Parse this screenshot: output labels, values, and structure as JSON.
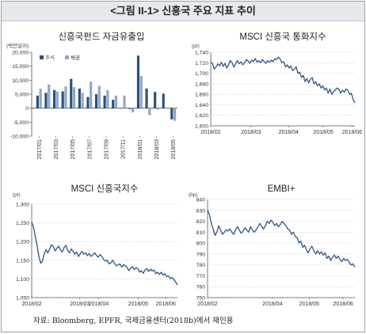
{
  "figure_title": "<그림 II-1> 신흥국 주요 지표 추이",
  "source_note": "자료: Bloomberg, EPFR, 국제금융센터(2018b)에서 재인용",
  "colors": {
    "stock": "#2b4f7e",
    "bond": "#8fa8c6",
    "line": "#2e5585",
    "grid": "#bfbfbf",
    "axis": "#555555"
  },
  "chart_data": [
    {
      "type": "bar",
      "title": "신흥국펀드 자금유출입",
      "ylabel": "(백만달러)",
      "ylim": [
        -10000,
        20000
      ],
      "yticks": [
        -10000,
        -5000,
        0,
        5000,
        10000,
        15000,
        20000
      ],
      "ytick_labels": [
        "-10,000",
        "-5,000",
        "0",
        "5,000",
        "10,000",
        "15,000",
        "20,000"
      ],
      "categories": [
        "2017/01",
        "2017/02",
        "2017/03",
        "2017/04",
        "2017/05",
        "2017/06",
        "2017/07",
        "2017/08",
        "2017/09",
        "2017/10",
        "2017/11",
        "2017/12",
        "2018/01",
        "2018/02",
        "2018/03",
        "2018/04",
        "2018/05"
      ],
      "xtick_labels": [
        "2017/01",
        "2017/03",
        "2017/05",
        "2017/07",
        "2017/09",
        "2017/11",
        "2018/01",
        "2018/03",
        "2018/05"
      ],
      "legend": "top-left",
      "series": [
        {
          "name": "주식",
          "values": [
            4500,
            5500,
            6500,
            6000,
            10500,
            7000,
            4000,
            5000,
            4500,
            3000,
            0,
            -300,
            18800,
            7000,
            5800,
            5200,
            -4000
          ]
        },
        {
          "name": "채권",
          "values": [
            7000,
            8500,
            6000,
            7800,
            7500,
            5500,
            9500,
            8000,
            6500,
            4500,
            4500,
            -1500,
            11500,
            -2500,
            -500,
            -200,
            -4500
          ]
        }
      ]
    },
    {
      "type": "line",
      "title": "MSCI 신흥국 통화지수",
      "ylabel": "(pt)",
      "ylim": [
        1600,
        1740
      ],
      "yticks": [
        1600,
        1620,
        1640,
        1660,
        1680,
        1700,
        1720,
        1740
      ],
      "ytick_labels": [
        "1,600",
        "1,620",
        "1,640",
        "1,660",
        "1,680",
        "1,700",
        "1,720",
        "1,740"
      ],
      "xtick_labels": [
        "2018/02",
        "2018/03",
        "2018/04",
        "2018/05",
        "2018/06"
      ],
      "values": [
        1722,
        1718,
        1708,
        1712,
        1718,
        1714,
        1721,
        1713,
        1719,
        1710,
        1716,
        1724,
        1720,
        1712,
        1718,
        1724,
        1718,
        1722,
        1716,
        1720,
        1726,
        1723,
        1719,
        1725,
        1722,
        1728,
        1721,
        1724,
        1720,
        1726,
        1722,
        1719,
        1724,
        1721,
        1725,
        1722,
        1728,
        1726,
        1731,
        1727,
        1720,
        1722,
        1712,
        1716,
        1710,
        1714,
        1705,
        1708,
        1712,
        1700,
        1702,
        1692,
        1696,
        1684,
        1690,
        1682,
        1688,
        1692,
        1680,
        1684,
        1676,
        1680,
        1672,
        1676,
        1668,
        1672,
        1662,
        1670,
        1660,
        1665,
        1668,
        1672,
        1670,
        1662,
        1668,
        1664,
        1670,
        1668,
        1660,
        1662,
        1650,
        1644
      ]
    },
    {
      "type": "line",
      "title": "MSCI 신흥국지수",
      "ylabel": "(pt)",
      "ylim": [
        1050,
        1300
      ],
      "yticks": [
        1050,
        1100,
        1150,
        1200,
        1250,
        1300
      ],
      "ytick_labels": [
        "1,050",
        "1,100",
        "1,150",
        "1,200",
        "1,250",
        "1,300"
      ],
      "xtick_labels": [
        "2018/02",
        "2018/03",
        "2018/04",
        "2018/05",
        "2018/06"
      ],
      "values": [
        1252,
        1238,
        1215,
        1190,
        1160,
        1142,
        1148,
        1168,
        1178,
        1170,
        1180,
        1192,
        1186,
        1175,
        1182,
        1188,
        1178,
        1172,
        1184,
        1190,
        1176,
        1170,
        1180,
        1174,
        1166,
        1172,
        1160,
        1168,
        1174,
        1166,
        1170,
        1162,
        1168,
        1160,
        1165,
        1170,
        1163,
        1158,
        1165,
        1160,
        1152,
        1148,
        1150,
        1140,
        1143,
        1150,
        1142,
        1135,
        1138,
        1140,
        1132,
        1138,
        1136,
        1130,
        1122,
        1128,
        1133,
        1125,
        1130,
        1128,
        1118,
        1122,
        1115,
        1124,
        1128,
        1120,
        1126,
        1121,
        1124,
        1114,
        1118,
        1112,
        1118,
        1110,
        1114,
        1106,
        1108,
        1101,
        1104,
        1098,
        1092,
        1084
      ]
    },
    {
      "type": "line",
      "title": "EMBI+",
      "ylabel": "(bp)",
      "ylim": [
        750,
        840
      ],
      "yticks": [
        750,
        760,
        770,
        780,
        790,
        800,
        810,
        820,
        830,
        840
      ],
      "ytick_labels": [
        "750",
        "760",
        "770",
        "780",
        "790",
        "800",
        "810",
        "820",
        "830",
        "840"
      ],
      "xtick_labels": [
        "2018/02",
        "2018/04",
        "2018/05",
        "2018/06"
      ],
      "values": [
        830,
        826,
        818,
        813,
        807,
        810,
        816,
        812,
        808,
        810,
        812,
        811,
        813,
        810,
        808,
        812,
        815,
        812,
        809,
        811,
        814,
        812,
        810,
        815,
        812,
        810,
        812,
        815,
        818,
        815,
        813,
        816,
        820,
        818,
        821,
        819,
        816,
        818,
        815,
        817,
        820,
        818,
        816,
        813,
        812,
        808,
        810,
        806,
        805,
        800,
        802,
        796,
        798,
        794,
        791,
        795,
        797,
        793,
        790,
        793,
        790,
        792,
        789,
        791,
        786,
        788,
        784,
        787,
        789,
        786,
        788,
        785,
        783,
        786,
        784,
        785,
        782,
        780,
        781,
        778
      ]
    }
  ]
}
